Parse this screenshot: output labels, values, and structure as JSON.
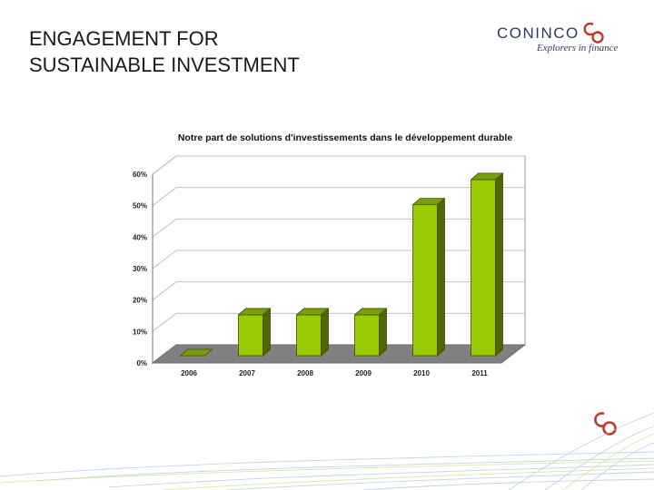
{
  "slide": {
    "title_line1": "ENGAGEMENT FOR",
    "title_line2": "SUSTAINABLE INVESTMENT"
  },
  "logo": {
    "name": "CONINCO",
    "tagline": "Explorers in finance",
    "icon": "co-logo-icon"
  },
  "colors": {
    "bar_front": "#99cc00",
    "bar_side": "#4d6600",
    "bar_top": "#7a9d0a",
    "floor": "#808080",
    "grid": "#c0c0c0",
    "brand_red": "#c0392b",
    "brand_navy": "#2e3a67"
  },
  "chart_data": {
    "type": "bar",
    "title": "Notre part de solutions d'investissements dans le développement durable",
    "categories": [
      "2006",
      "2007",
      "2008",
      "2009",
      "2010",
      "2011"
    ],
    "values": [
      0,
      13,
      13,
      13,
      48,
      56
    ],
    "ylim": [
      0,
      60
    ],
    "yticks": [
      0,
      10,
      20,
      30,
      40,
      50,
      60
    ],
    "ytick_labels": [
      "0%",
      "10%",
      "20%",
      "30%",
      "40%",
      "50%",
      "60%"
    ],
    "xlabel": "",
    "ylabel": "",
    "grid": true,
    "legend": "none"
  }
}
